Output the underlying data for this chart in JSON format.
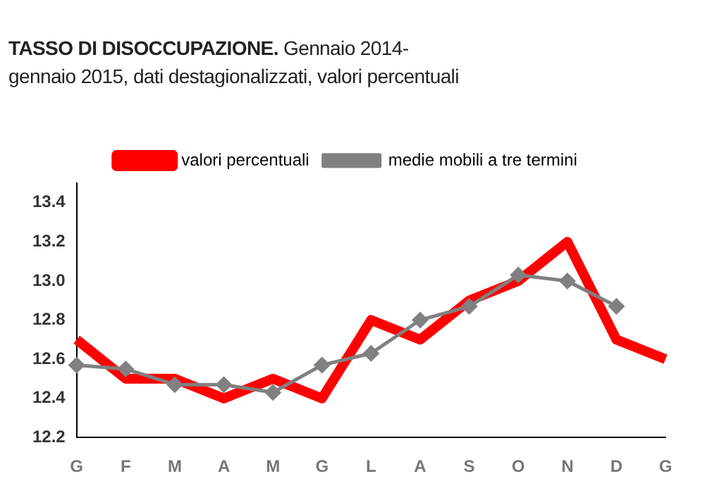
{
  "chart_data": {
    "type": "line",
    "title": "TASSO DI DISOCCUPAZIONE.",
    "subtitle": "Gennaio 2014- gennaio 2015, dati destagionalizzati, valori percentuali",
    "categories": [
      "G",
      "F",
      "M",
      "A",
      "M",
      "G",
      "L",
      "A",
      "S",
      "O",
      "N",
      "D",
      "G"
    ],
    "series": [
      {
        "name": "valori percentuali",
        "color": "#ff0000",
        "marker": "none",
        "values": [
          12.7,
          12.5,
          12.5,
          12.4,
          12.5,
          12.4,
          12.8,
          12.7,
          12.9,
          13.0,
          13.2,
          12.7,
          12.6
        ]
      },
      {
        "name": "medie mobili a tre termini",
        "color": "#808080",
        "marker": "diamond",
        "values": [
          12.57,
          12.55,
          12.47,
          12.47,
          12.43,
          12.57,
          12.63,
          12.8,
          12.87,
          13.03,
          13.0,
          12.87,
          null
        ]
      }
    ],
    "ylim": [
      12.2,
      13.5
    ],
    "yticks": [
      {
        "value": 12.2,
        "label": "12.2"
      },
      {
        "value": 12.4,
        "label": "12.4"
      },
      {
        "value": 12.6,
        "label": "12.6"
      },
      {
        "value": 12.8,
        "label": "12.8"
      },
      {
        "value": 13,
        "label": "13.0"
      },
      {
        "value": 13.2,
        "label": "13.2"
      },
      {
        "value": 13.4,
        "label": "13.4"
      }
    ],
    "grid": false,
    "legend": "top",
    "line_style": "solid"
  }
}
